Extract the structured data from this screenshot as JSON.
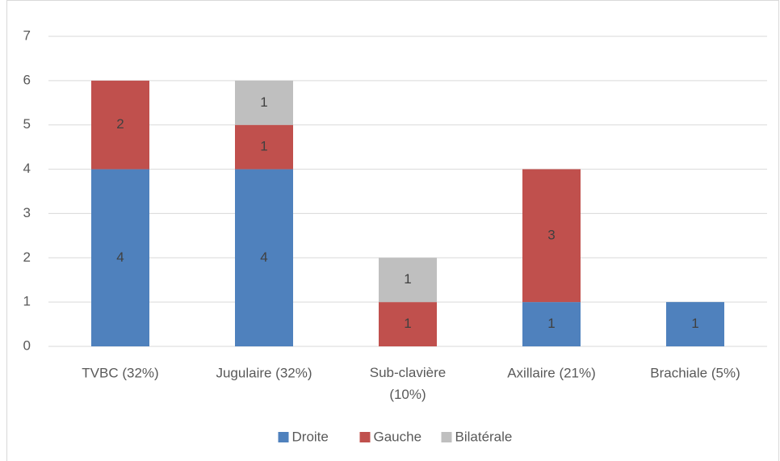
{
  "chart_data": {
    "type": "stacked_bar",
    "categories": [
      "TVBC (32%)",
      "Jugulaire (32%)",
      "Sub-clavière (10%)",
      "Axillaire (21%)",
      "Brachiale (5%)"
    ],
    "series": [
      {
        "name": "Droite",
        "color": "#4f81bd",
        "values": [
          4,
          4,
          0,
          1,
          1
        ]
      },
      {
        "name": "Gauche",
        "color": "#c0504d",
        "values": [
          2,
          1,
          1,
          3,
          0
        ]
      },
      {
        "name": "Bilatérale",
        "color": "#bfbfbf",
        "values": [
          0,
          1,
          1,
          0,
          0
        ]
      }
    ],
    "ylim": [
      0,
      7
    ],
    "yticks": [
      0,
      1,
      2,
      3,
      4,
      5,
      6,
      7
    ],
    "grid": true,
    "legend": "bottom"
  }
}
